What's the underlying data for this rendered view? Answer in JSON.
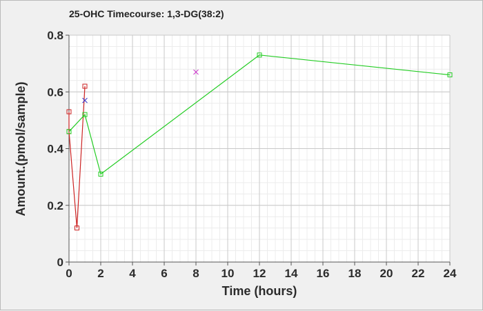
{
  "chart_data": {
    "type": "line",
    "title": "25-OHC Timecourse: 1,3-DG(38:2)",
    "xlabel": "Time (hours)",
    "ylabel": "Amount.(pmol/sample)",
    "xlim": [
      0,
      24
    ],
    "ylim": [
      0,
      0.8
    ],
    "x_ticks": [
      "0",
      "2",
      "4",
      "6",
      "8",
      "10",
      "12",
      "14",
      "16",
      "18",
      "20",
      "22",
      "24"
    ],
    "y_ticks": [
      "0",
      "0.2",
      "0.4",
      "0.6",
      "0.8"
    ],
    "grid": true,
    "series": [
      {
        "color": "#cc2222",
        "marker": "square",
        "line": true,
        "points": [
          [
            0,
            0.53
          ],
          [
            0,
            0.46
          ],
          [
            0.5,
            0.12
          ],
          [
            1,
            0.62
          ]
        ]
      },
      {
        "color": "#22cc22",
        "marker": "square",
        "line": true,
        "points": [
          [
            0,
            0.46
          ],
          [
            1,
            0.52
          ],
          [
            2,
            0.31
          ],
          [
            12,
            0.73
          ],
          [
            24,
            0.66
          ]
        ]
      },
      {
        "color": "#3333cc",
        "marker": "x",
        "line": false,
        "points": [
          [
            1,
            0.57
          ]
        ]
      },
      {
        "color": "#cc33cc",
        "marker": "x",
        "line": false,
        "points": [
          [
            8,
            0.67
          ]
        ]
      }
    ]
  }
}
